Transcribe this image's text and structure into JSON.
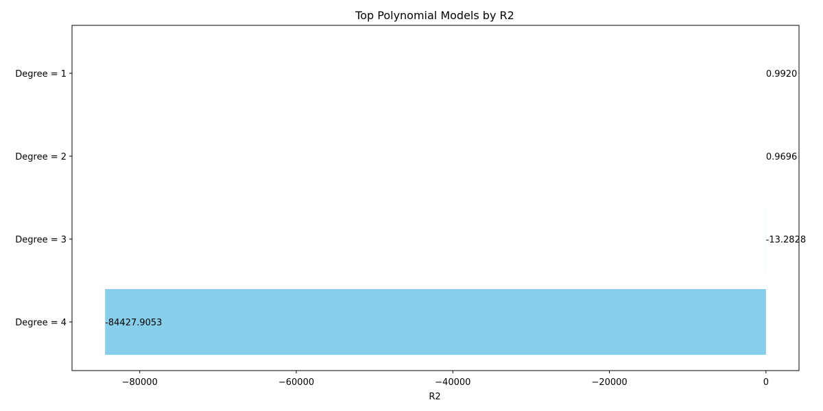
{
  "chart_data": {
    "type": "bar",
    "orientation": "horizontal",
    "title": "Top Polynomial Models by R2",
    "xlabel": "R2",
    "ylabel": "",
    "categories": [
      "Degree = 1",
      "Degree = 2",
      "Degree = 3",
      "Degree = 4"
    ],
    "values": [
      0.992,
      0.9696,
      -13.2828,
      -84427.9053
    ],
    "value_labels": [
      "0.9920",
      "0.9696",
      "-13.2828",
      "-84427.9053"
    ],
    "xlim": [
      -88650,
      4220
    ],
    "xticks": [
      -80000,
      -60000,
      -40000,
      -20000,
      0
    ],
    "xtick_labels": [
      "−80000",
      "−60000",
      "−40000",
      "−20000",
      "0"
    ],
    "grid": false,
    "bar_color": "#87CEEB"
  }
}
